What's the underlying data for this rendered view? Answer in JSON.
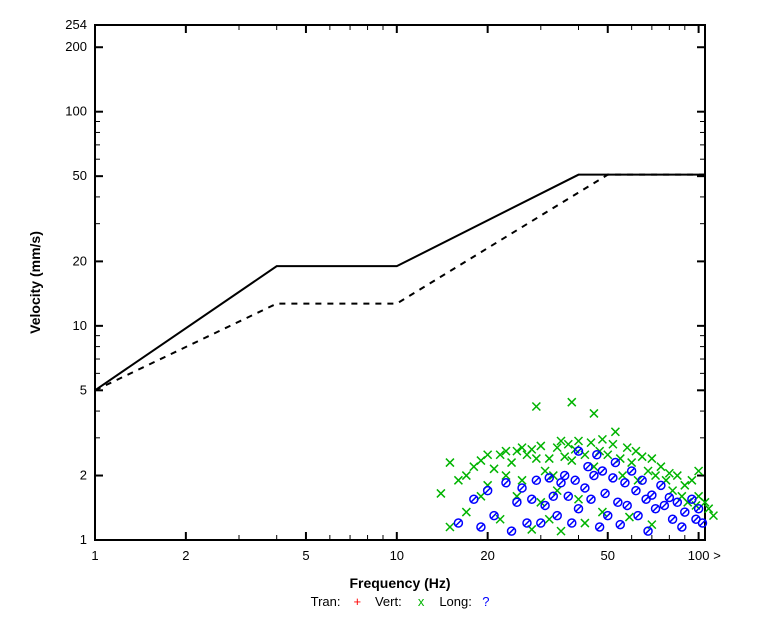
{
  "chart": {
    "type": "scatter-loglog",
    "xlabel": "Frequency (Hz)",
    "ylabel": "Velocity (mm/s)",
    "x_log": true,
    "y_log": true,
    "xlim": [
      1,
      105
    ],
    "ylim": [
      1,
      254
    ],
    "x_ticks": [
      1,
      2,
      5,
      10,
      20,
      50,
      100
    ],
    "y_ticks": [
      1,
      2,
      5,
      10,
      20,
      50,
      100,
      200,
      254
    ],
    "x_overflow_label": ">",
    "background_color": "#ffffff",
    "axis_color": "#000000",
    "tick_length": 8,
    "minor_tick_length": 5,
    "axis_stroke_width": 2,
    "label_fontsize": 14,
    "tick_fontsize": 13,
    "legend": {
      "items": [
        {
          "label": "Tran:",
          "symbol": "+",
          "color": "#ff0000"
        },
        {
          "label": "Vert:",
          "symbol": "x",
          "color": "#00b400"
        },
        {
          "label": "Long:",
          "symbol": "?",
          "color": "#0000ff"
        }
      ],
      "fontsize": 13,
      "label_color": "#000000"
    },
    "limit_lines": {
      "solid": {
        "color": "#000000",
        "width": 2,
        "dash": "none",
        "points": [
          [
            1,
            5
          ],
          [
            4,
            19
          ],
          [
            10,
            19
          ],
          [
            40,
            50.8
          ],
          [
            105,
            50.8
          ]
        ]
      },
      "dashed": {
        "color": "#000000",
        "width": 2,
        "dash": "6,6",
        "points": [
          [
            1,
            5
          ],
          [
            4,
            12.7
          ],
          [
            10,
            12.7
          ],
          [
            50,
            50.8
          ],
          [
            105,
            50.8
          ]
        ]
      }
    },
    "series": {
      "tran": {
        "marker": "plus",
        "color": "#ff0000",
        "size": 8,
        "stroke_width": 1.5,
        "points": []
      },
      "vert": {
        "marker": "x",
        "color": "#00b400",
        "size": 8,
        "stroke_width": 1.5,
        "points": [
          [
            14,
            1.65
          ],
          [
            15,
            2.3
          ],
          [
            15,
            1.15
          ],
          [
            16,
            1.9
          ],
          [
            17,
            2.0
          ],
          [
            17,
            1.35
          ],
          [
            18,
            2.2
          ],
          [
            19,
            2.35
          ],
          [
            19,
            1.6
          ],
          [
            20,
            2.5
          ],
          [
            20,
            1.8
          ],
          [
            21,
            2.15
          ],
          [
            22,
            2.5
          ],
          [
            22,
            1.25
          ],
          [
            23,
            2.0
          ],
          [
            23,
            2.6
          ],
          [
            24,
            2.3
          ],
          [
            25,
            2.6
          ],
          [
            25,
            1.6
          ],
          [
            26,
            2.7
          ],
          [
            26,
            1.9
          ],
          [
            27,
            2.5
          ],
          [
            28,
            2.65
          ],
          [
            28,
            1.12
          ],
          [
            29,
            2.4
          ],
          [
            29,
            4.2
          ],
          [
            30,
            2.75
          ],
          [
            30,
            1.5
          ],
          [
            31,
            2.1
          ],
          [
            32,
            2.4
          ],
          [
            32,
            1.25
          ],
          [
            33,
            2.0
          ],
          [
            34,
            2.7
          ],
          [
            34,
            1.7
          ],
          [
            35,
            2.9
          ],
          [
            35,
            1.1
          ],
          [
            36,
            2.45
          ],
          [
            37,
            2.8
          ],
          [
            38,
            2.35
          ],
          [
            38,
            4.4
          ],
          [
            39,
            2.65
          ],
          [
            40,
            2.9
          ],
          [
            40,
            1.55
          ],
          [
            42,
            2.5
          ],
          [
            42,
            1.2
          ],
          [
            44,
            2.85
          ],
          [
            45,
            2.2
          ],
          [
            45,
            3.9
          ],
          [
            47,
            2.6
          ],
          [
            48,
            2.95
          ],
          [
            48,
            1.35
          ],
          [
            50,
            2.5
          ],
          [
            52,
            2.8
          ],
          [
            53,
            3.2
          ],
          [
            55,
            2.4
          ],
          [
            56,
            2.0
          ],
          [
            58,
            2.7
          ],
          [
            59,
            1.28
          ],
          [
            60,
            2.3
          ],
          [
            62,
            2.6
          ],
          [
            63,
            1.9
          ],
          [
            65,
            2.45
          ],
          [
            68,
            2.1
          ],
          [
            70,
            2.4
          ],
          [
            70,
            1.18
          ],
          [
            72,
            2.0
          ],
          [
            75,
            2.2
          ],
          [
            78,
            1.9
          ],
          [
            80,
            2.05
          ],
          [
            82,
            1.7
          ],
          [
            85,
            2.0
          ],
          [
            88,
            1.6
          ],
          [
            90,
            1.8
          ],
          [
            92,
            1.5
          ],
          [
            95,
            1.9
          ],
          [
            98,
            1.45
          ],
          [
            100,
            1.6
          ],
          [
            100,
            2.1
          ],
          [
            105,
            1.5
          ],
          [
            108,
            1.4
          ],
          [
            112,
            1.3
          ]
        ]
      },
      "long": {
        "marker": "circle-slash",
        "color": "#0000ff",
        "size": 8,
        "stroke_width": 1.5,
        "points": [
          [
            16,
            1.2
          ],
          [
            18,
            1.55
          ],
          [
            19,
            1.15
          ],
          [
            20,
            1.7
          ],
          [
            21,
            1.3
          ],
          [
            23,
            1.85
          ],
          [
            24,
            1.1
          ],
          [
            25,
            1.5
          ],
          [
            26,
            1.75
          ],
          [
            27,
            1.2
          ],
          [
            28,
            1.55
          ],
          [
            29,
            1.9
          ],
          [
            30,
            1.2
          ],
          [
            31,
            1.45
          ],
          [
            32,
            1.95
          ],
          [
            33,
            1.6
          ],
          [
            34,
            1.3
          ],
          [
            35,
            1.85
          ],
          [
            36,
            2.0
          ],
          [
            37,
            1.6
          ],
          [
            38,
            1.2
          ],
          [
            39,
            1.9
          ],
          [
            40,
            2.6
          ],
          [
            40,
            1.4
          ],
          [
            42,
            1.75
          ],
          [
            43,
            2.2
          ],
          [
            44,
            1.55
          ],
          [
            45,
            2.0
          ],
          [
            46,
            2.5
          ],
          [
            47,
            1.15
          ],
          [
            48,
            2.1
          ],
          [
            49,
            1.65
          ],
          [
            50,
            1.3
          ],
          [
            52,
            1.95
          ],
          [
            53,
            2.3
          ],
          [
            54,
            1.5
          ],
          [
            55,
            1.18
          ],
          [
            57,
            1.85
          ],
          [
            58,
            1.45
          ],
          [
            60,
            2.1
          ],
          [
            62,
            1.7
          ],
          [
            63,
            1.3
          ],
          [
            65,
            1.9
          ],
          [
            67,
            1.55
          ],
          [
            68,
            1.1
          ],
          [
            70,
            1.62
          ],
          [
            72,
            1.4
          ],
          [
            75,
            1.8
          ],
          [
            77,
            1.45
          ],
          [
            80,
            1.58
          ],
          [
            82,
            1.25
          ],
          [
            85,
            1.5
          ],
          [
            88,
            1.15
          ],
          [
            90,
            1.35
          ],
          [
            95,
            1.55
          ],
          [
            98,
            1.25
          ],
          [
            100,
            1.4
          ],
          [
            103,
            1.2
          ]
        ]
      }
    }
  }
}
